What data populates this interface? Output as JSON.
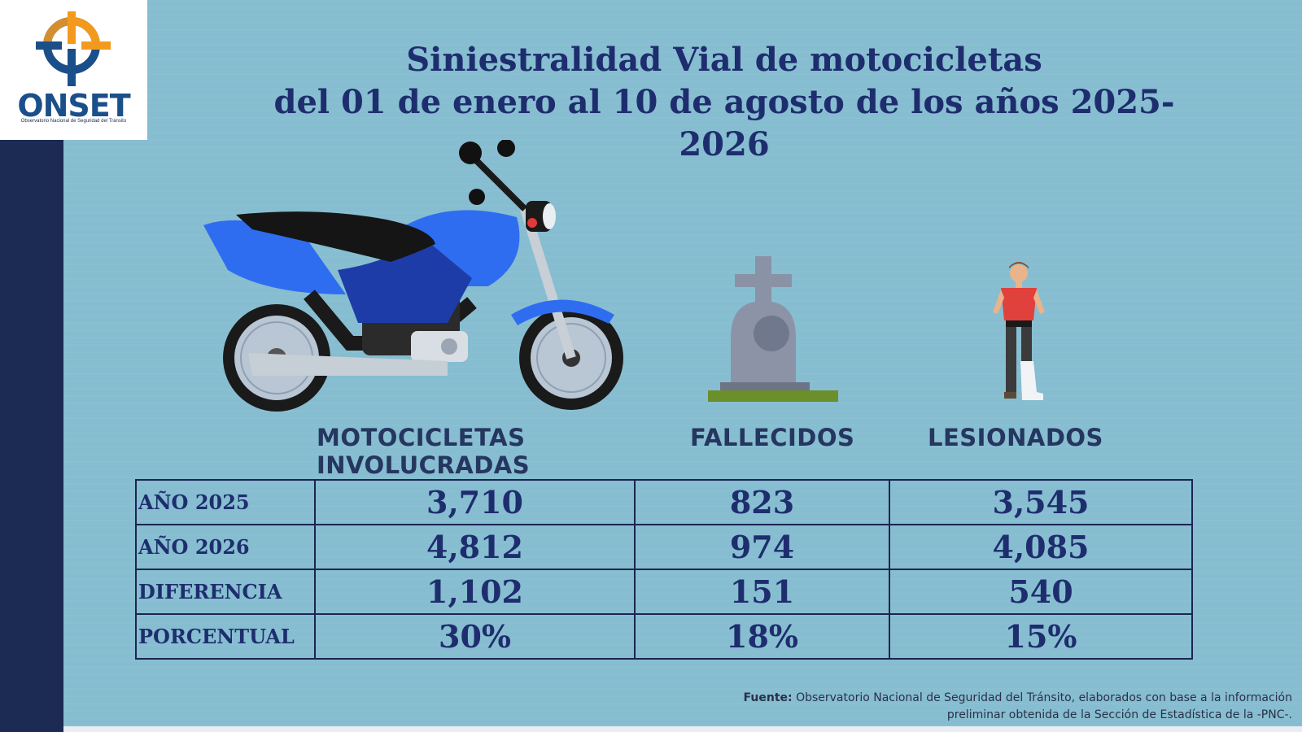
{
  "logo": {
    "name": "ONSET",
    "subtitle": "Observatorio Nacional de Seguridad del Tránsito"
  },
  "title": {
    "line1": "Siniestralidad Vial de motocicletas",
    "line2": "del 01 de enero al 10 de agosto de los años 2025-2026"
  },
  "columns": {
    "motos_line1": "MOTOCICLETAS",
    "motos_line2": "INVOLUCRADAS",
    "fallecidos": "FALLECIDOS",
    "lesionados": "LESIONADOS"
  },
  "table": {
    "rows": [
      {
        "label": "AÑO 2025",
        "motos": "3,710",
        "fallecidos": "823",
        "lesionados": "3,545"
      },
      {
        "label": "AÑO 2026",
        "motos": "4,812",
        "fallecidos": "974",
        "lesionados": "4,085"
      },
      {
        "label": "DIFERENCIA",
        "motos": "1,102",
        "fallecidos": "151",
        "lesionados": "540"
      },
      {
        "label": "PORCENTUAL",
        "motos": "30%",
        "fallecidos": "18%",
        "lesionados": "15%"
      }
    ]
  },
  "source": {
    "label": "Fuente:",
    "line1": "Observatorio Nacional de Seguridad del Tránsito, elaborados con base a la información",
    "line2": "preliminar obtenida de la Sección de Estadística de la -PNC-."
  },
  "colors": {
    "navy": "#1e2d6e",
    "background": "#86bdd0",
    "sidebar": "#1b2b54",
    "moto_blue": "#2f6df0"
  },
  "icons": [
    "motorcycle-illustration",
    "tombstone-icon",
    "injured-person-icon",
    "onset-logo"
  ]
}
